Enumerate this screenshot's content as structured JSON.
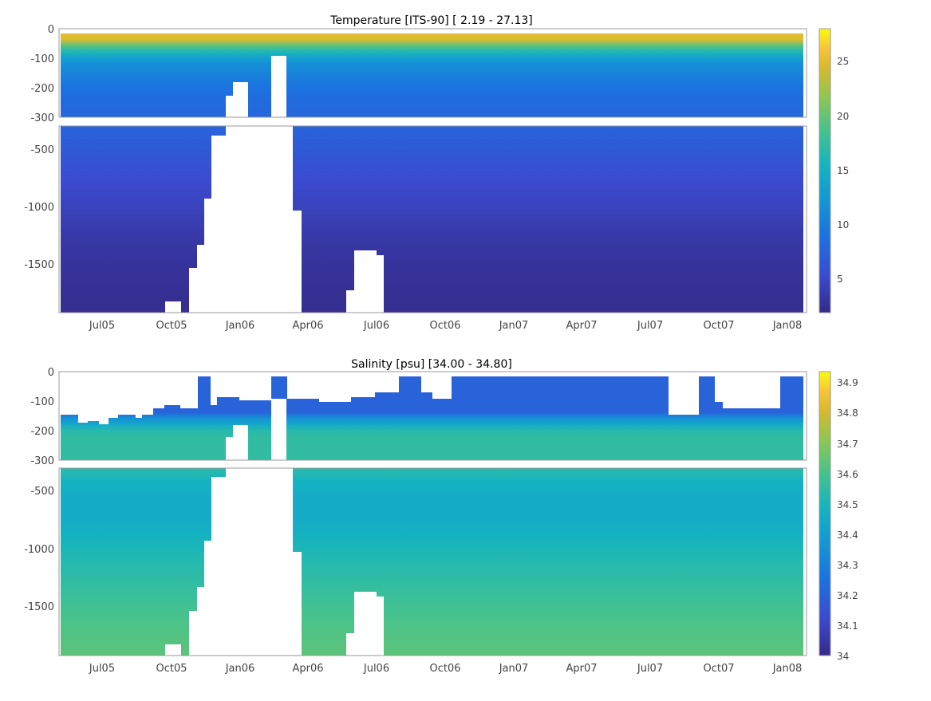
{
  "chart_data": [
    {
      "type": "heatmap",
      "title": "Temperature [ITS-90]   [ 2.19 - 27.13]",
      "xlabel": "",
      "ylabel": "",
      "x_ticks": [
        "Jul05",
        "Oct05",
        "Jan06",
        "Apr06",
        "Jul06",
        "Oct06",
        "Jan07",
        "Apr07",
        "Jul07",
        "Oct07",
        "Jan08"
      ],
      "y_ticks_upper": [
        "0",
        "-100",
        "-200",
        "-300"
      ],
      "y_ticks_lower": [
        "-500",
        "-1000",
        "-1500"
      ],
      "ylim_upper": [
        -300,
        0
      ],
      "ylim_lower": [
        -1930,
        -330
      ],
      "colorbar": {
        "range": [
          2.19,
          28
        ],
        "ticks": [
          "5",
          "10",
          "15",
          "20",
          "25"
        ],
        "colormap": "parula"
      },
      "profile_depths": [
        -20,
        -50,
        -100,
        -200,
        -300,
        -500,
        -800,
        -1000,
        -1300,
        -1600,
        -1900
      ],
      "profile_values": [
        25,
        18,
        12,
        9,
        8,
        7,
        5.5,
        4.8,
        3.6,
        3.0,
        2.6
      ]
    },
    {
      "type": "heatmap",
      "title": "Salinity [psu]   [34.00 - 34.80]",
      "xlabel": "",
      "ylabel": "",
      "x_ticks": [
        "Jul05",
        "Oct05",
        "Jan06",
        "Apr06",
        "Jul06",
        "Oct06",
        "Jan07",
        "Apr07",
        "Jul07",
        "Oct07",
        "Jan08"
      ],
      "y_ticks_upper": [
        "0",
        "-100",
        "-200",
        "-300"
      ],
      "y_ticks_lower": [
        "-500",
        "-1000",
        "-1500"
      ],
      "ylim_upper": [
        -300,
        0
      ],
      "ylim_lower": [
        -1930,
        -330
      ],
      "colorbar": {
        "range": [
          34.0,
          34.93
        ],
        "ticks": [
          "34",
          "34.1",
          "34.2",
          "34.3",
          "34.4",
          "34.5",
          "34.6",
          "34.7",
          "34.8",
          "34.9"
        ],
        "colormap": "parula"
      },
      "profile_depths": [
        -130,
        -150,
        -200,
        -300,
        -500,
        -800,
        -1000,
        -1300,
        -1600,
        -1900
      ],
      "profile_values": [
        34.2,
        34.35,
        34.55,
        34.55,
        34.45,
        34.45,
        34.5,
        34.55,
        34.6,
        34.63
      ]
    }
  ]
}
